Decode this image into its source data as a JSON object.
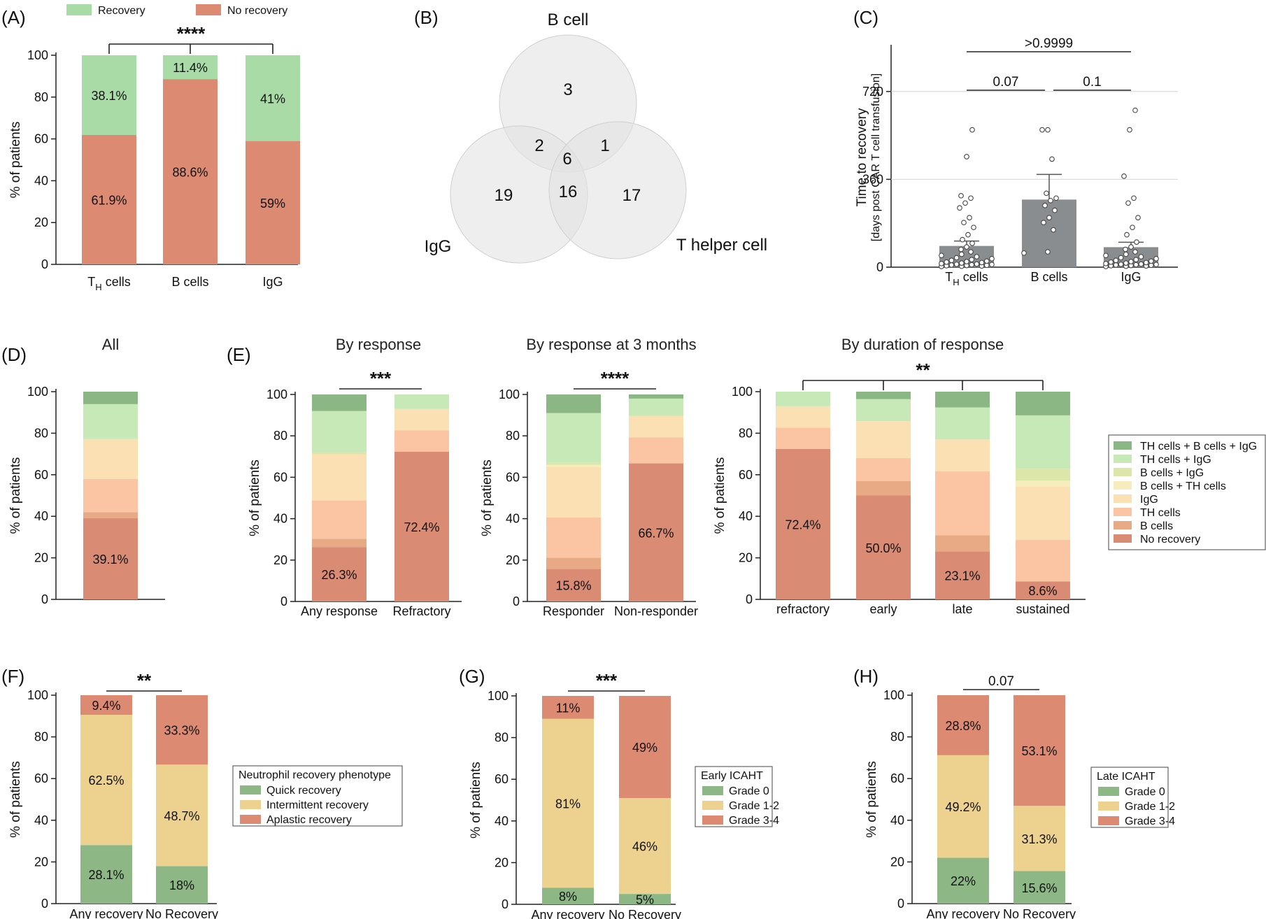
{
  "panel_labels": [
    "(A)",
    "(B)",
    "(C)",
    "(D)",
    "(E)",
    "(F)",
    "(G)",
    "(H)"
  ],
  "colors": {
    "recovery": "#a8dba6",
    "no_recovery": "#dd8a72",
    "th_b_igg": "#8bb784",
    "th_igg": "#c7e8b7",
    "b_igg": "#dbe6a8",
    "b_th": "#f6ecbc",
    "igg": "#fbe0b4",
    "th": "#fbc4a2",
    "b": "#e8a985",
    "norec": "#d98b73",
    "grade0": "#8db886",
    "grade12": "#ecd18f",
    "grade34": "#dd8a72",
    "venn_fill": "#e3e3e3",
    "bar_grey": "#8a8d90"
  },
  "chart_data": [
    {
      "id": "A",
      "type": "bar",
      "stacked": true,
      "title": "",
      "categories": [
        "TH cells",
        "B cells",
        "IgG"
      ],
      "series": [
        {
          "name": "No recovery",
          "values": [
            61.9,
            88.6,
            59
          ],
          "labels": [
            "61.9%",
            "88.6%",
            "59%"
          ]
        },
        {
          "name": "Recovery",
          "values": [
            38.1,
            11.4,
            41
          ],
          "labels": [
            "38.1%",
            "11.4%",
            "41%"
          ]
        }
      ],
      "ylabel": "% of patients",
      "ylim": [
        0,
        100
      ],
      "yticks": [
        0,
        20,
        40,
        60,
        80,
        100
      ],
      "legend": [
        "Recovery",
        "No recovery"
      ],
      "legend_position": "top",
      "significance": [
        {
          "text": "****",
          "groups": [
            0,
            1,
            2
          ]
        }
      ]
    },
    {
      "id": "B",
      "type": "venn",
      "sets": [
        "B cell",
        "IgG",
        "T helper cell"
      ],
      "regions": {
        "B_only": 3,
        "B_IgG": 2,
        "B_T": 1,
        "all": 6,
        "IgG_only": 19,
        "IgG_T": 16,
        "T_only": 17
      }
    },
    {
      "id": "C",
      "type": "bar",
      "categories": [
        "TH cells",
        "B cells",
        "IgG"
      ],
      "values": [
        87,
        277,
        82
      ],
      "error_upper": [
        107,
        380,
        102
      ],
      "points": [
        [
          0,
          1,
          2,
          3,
          4,
          5,
          6,
          7,
          8,
          9,
          10,
          12,
          14,
          16,
          18,
          20,
          22,
          25,
          28,
          32,
          36,
          40,
          45,
          50,
          60,
          70,
          80,
          95,
          110,
          130,
          160,
          180,
          200,
          240,
          260,
          280,
          290,
          450,
          560
        ],
        [
          55,
          60,
          150,
          180,
          200,
          230,
          250,
          270,
          280,
          300,
          440,
          560,
          560
        ],
        [
          0,
          1,
          2,
          3,
          4,
          5,
          6,
          7,
          8,
          9,
          10,
          12,
          14,
          16,
          18,
          20,
          22,
          25,
          28,
          32,
          36,
          40,
          45,
          50,
          60,
          70,
          80,
          100,
          130,
          160,
          200,
          260,
          280,
          370,
          560,
          640
        ]
      ],
      "ylabel": "Time to recovery",
      "ylabel2": "[days post CAR T cell transfusion]",
      "ylim": [
        0,
        900
      ],
      "yticks": [
        0,
        360,
        720
      ],
      "significance": [
        {
          "text": ">0.9999",
          "groups": [
            0,
            2
          ]
        },
        {
          "text": "0.07",
          "groups": [
            0,
            1
          ]
        },
        {
          "text": "0.1",
          "groups": [
            1,
            2
          ]
        }
      ]
    },
    {
      "id": "D",
      "type": "bar",
      "stacked": true,
      "title": "All",
      "categories": [
        ""
      ],
      "series_order": [
        "No recovery",
        "B cells",
        "TH cells",
        "IgG",
        "B cells + TH cells",
        "B cells + IgG",
        "TH cells + IgG",
        "TH cells + B cells + IgG"
      ],
      "stacks": [
        [
          39.1,
          2.9,
          16.0,
          19.0,
          0.0,
          0.5,
          16.5,
          6.0
        ]
      ],
      "labels": [
        "39.1%"
      ],
      "ylabel": "% of patients",
      "ylim": [
        0,
        100
      ],
      "yticks": [
        0,
        20,
        40,
        60,
        80,
        100
      ]
    },
    {
      "id": "E1",
      "type": "bar",
      "stacked": true,
      "title": "By response",
      "categories": [
        "Any response",
        "Refractory"
      ],
      "stacks": [
        [
          26.3,
          4.0,
          18.5,
          22.3,
          0.0,
          1.0,
          19.9,
          8.0
        ],
        [
          72.4,
          0.0,
          10.3,
          10.3,
          0.0,
          0.0,
          7.0,
          0.0
        ]
      ],
      "labels": [
        "26.3%",
        "72.4%"
      ],
      "ylabel": "% of patients",
      "ylim": [
        0,
        100
      ],
      "yticks": [
        0,
        20,
        40,
        60,
        80,
        100
      ],
      "significance": [
        {
          "text": "***",
          "groups": [
            0,
            1
          ]
        }
      ]
    },
    {
      "id": "E2",
      "type": "bar",
      "stacked": true,
      "title": "By response at 3 months",
      "categories": [
        "Responder",
        "Non-responder"
      ],
      "stacks": [
        [
          15.8,
          5.3,
          19.5,
          24.4,
          1.0,
          1.0,
          24.0,
          9.0
        ],
        [
          66.7,
          0.0,
          12.6,
          10.4,
          0.0,
          0.0,
          8.3,
          2.0
        ]
      ],
      "labels": [
        "15.8%",
        "66.7%"
      ],
      "ylabel": "% of patients",
      "ylim": [
        0,
        100
      ],
      "yticks": [
        0,
        20,
        40,
        60,
        80,
        100
      ],
      "significance": [
        {
          "text": "****",
          "groups": [
            0,
            1
          ]
        }
      ]
    },
    {
      "id": "E3",
      "type": "bar",
      "stacked": true,
      "title": "By duration of response",
      "categories": [
        "refractory",
        "early",
        "late",
        "sustained"
      ],
      "stacks": [
        [
          72.4,
          0.0,
          10.3,
          10.3,
          0.0,
          0.0,
          7.0,
          0.0
        ],
        [
          50.0,
          7.0,
          11.0,
          17.8,
          0.0,
          0.0,
          10.6,
          3.6
        ],
        [
          23.1,
          7.7,
          30.8,
          15.4,
          0.0,
          0.0,
          15.4,
          7.6
        ],
        [
          8.6,
          0.0,
          20.0,
          25.7,
          2.9,
          5.7,
          25.7,
          11.4
        ]
      ],
      "labels": [
        "72.4%",
        "50.0%",
        "23.1%",
        "8.6%"
      ],
      "ylabel": "% of patients",
      "ylim": [
        0,
        100
      ],
      "yticks": [
        0,
        20,
        40,
        60,
        80,
        100
      ],
      "significance": [
        {
          "text": "**",
          "groups": [
            0,
            1,
            2,
            3
          ]
        }
      ]
    },
    {
      "id": "F",
      "type": "bar",
      "stacked": true,
      "categories": [
        "Any recovery",
        "No Recovery"
      ],
      "series": [
        {
          "name": "Quick recovery",
          "values": [
            28.1,
            18
          ],
          "labels": [
            "28.1%",
            "18%"
          ]
        },
        {
          "name": "Intermittent recovery",
          "values": [
            62.5,
            48.7
          ],
          "labels": [
            "62.5%",
            "48.7%"
          ]
        },
        {
          "name": "Aplastic recovery",
          "values": [
            9.4,
            33.3
          ],
          "labels": [
            "9.4%",
            "33.3%"
          ]
        }
      ],
      "legend_title": "Neutrophil recovery phenotype",
      "ylabel": "% of patients",
      "ylim": [
        0,
        100
      ],
      "yticks": [
        0,
        20,
        40,
        60,
        80,
        100
      ],
      "significance": [
        {
          "text": "**",
          "groups": [
            0,
            1
          ]
        }
      ]
    },
    {
      "id": "G",
      "type": "bar",
      "stacked": true,
      "categories": [
        "Any recovery",
        "No Recovery"
      ],
      "series": [
        {
          "name": "Grade 0",
          "values": [
            8,
            5
          ],
          "labels": [
            "8%",
            "5%"
          ]
        },
        {
          "name": "Grade 1-2",
          "values": [
            81,
            46
          ],
          "labels": [
            "81%",
            "46%"
          ]
        },
        {
          "name": "Grade 3-4",
          "values": [
            11,
            49
          ],
          "labels": [
            "11%",
            "49%"
          ]
        }
      ],
      "legend_title": "Early ICAHT",
      "ylabel": "% of patients",
      "ylim": [
        0,
        100
      ],
      "yticks": [
        0,
        20,
        40,
        60,
        80,
        100
      ],
      "significance": [
        {
          "text": "***",
          "groups": [
            0,
            1
          ]
        }
      ]
    },
    {
      "id": "H",
      "type": "bar",
      "stacked": true,
      "categories": [
        "Any recovery",
        "No Recovery"
      ],
      "series": [
        {
          "name": "Grade 0",
          "values": [
            22,
            15.6
          ],
          "labels": [
            "22%",
            "15.6%"
          ]
        },
        {
          "name": "Grade 1-2",
          "values": [
            49.2,
            31.3
          ],
          "labels": [
            "49.2%",
            "31.3%"
          ]
        },
        {
          "name": "Grade 3-4",
          "values": [
            28.8,
            53.1
          ],
          "labels": [
            "28.8%",
            "53.1%"
          ]
        }
      ],
      "legend_title": "Late ICAHT",
      "ylabel": "% of patients",
      "ylim": [
        0,
        100
      ],
      "yticks": [
        0,
        20,
        40,
        60,
        80,
        100
      ],
      "significance": [
        {
          "text": "0.07",
          "groups": [
            0,
            1
          ]
        }
      ]
    }
  ],
  "legend_DE": {
    "items": [
      "TH cells + B cells + IgG",
      "TH cells + IgG",
      "B cells + IgG",
      "B cells + TH cells",
      "IgG",
      "TH cells",
      "B cells",
      "No recovery"
    ]
  }
}
